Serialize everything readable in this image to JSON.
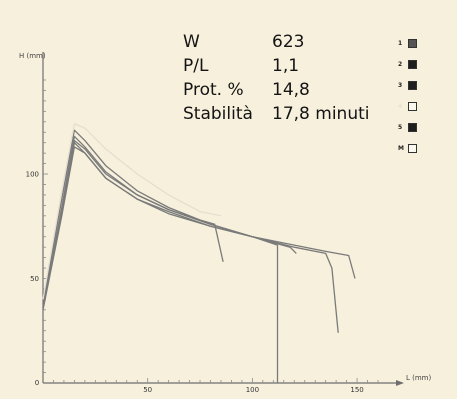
{
  "info": [
    {
      "label": "W",
      "value": "623"
    },
    {
      "label": "P/L",
      "value": "1,1"
    },
    {
      "label": "Prot. %",
      "value": "14,8"
    },
    {
      "label": "Stabilità",
      "value": "17,8 minuti"
    }
  ],
  "legend": [
    {
      "label": "1",
      "color": "#555555",
      "open": false
    },
    {
      "label": "2",
      "color": "#1e1e1e",
      "open": false
    },
    {
      "label": "3",
      "color": "#1e1e1e",
      "open": false
    },
    {
      "label": "4",
      "color": "#ffffff",
      "open": true
    },
    {
      "label": "5",
      "color": "#1e1e1e",
      "open": false
    },
    {
      "label": "M",
      "color": "#ffffff",
      "open": true
    }
  ],
  "chart_data": {
    "type": "line",
    "ylabel": "H (mm)",
    "xlabel": "L (mm)",
    "xlim": [
      0,
      160
    ],
    "ylim": [
      0,
      145
    ],
    "x_ticks": [
      0,
      50,
      100,
      150
    ],
    "y_ticks": [
      0,
      50,
      100
    ],
    "series": [
      {
        "color": "#7a7a7a",
        "points": [
          [
            0,
            38
          ],
          [
            9,
            88
          ],
          [
            15,
            121
          ],
          [
            20,
            116
          ],
          [
            30,
            104
          ],
          [
            45,
            92
          ],
          [
            60,
            84
          ],
          [
            75,
            78
          ],
          [
            82,
            76
          ],
          [
            86,
            58
          ]
        ]
      },
      {
        "color": "#7a7a7a",
        "points": [
          [
            0,
            36
          ],
          [
            9,
            84
          ],
          [
            15,
            118
          ],
          [
            20,
            113
          ],
          [
            30,
            101
          ],
          [
            45,
            90
          ],
          [
            60,
            83
          ],
          [
            80,
            76
          ],
          [
            100,
            70
          ],
          [
            112,
            66
          ],
          [
            112,
            0
          ]
        ]
      },
      {
        "color": "#7a7a7a",
        "points": [
          [
            0,
            36
          ],
          [
            9,
            82
          ],
          [
            15,
            116
          ],
          [
            20,
            112
          ],
          [
            30,
            100
          ],
          [
            45,
            90
          ],
          [
            60,
            83
          ],
          [
            80,
            76
          ],
          [
            100,
            70
          ],
          [
            118,
            65
          ],
          [
            121,
            62
          ]
        ]
      },
      {
        "color": "#7a7a7a",
        "points": [
          [
            0,
            35
          ],
          [
            9,
            80
          ],
          [
            15,
            113
          ],
          [
            20,
            110
          ],
          [
            30,
            98
          ],
          [
            45,
            88
          ],
          [
            60,
            82
          ],
          [
            80,
            75
          ],
          [
            100,
            70
          ],
          [
            120,
            65
          ],
          [
            135,
            62
          ],
          [
            138,
            55
          ],
          [
            141,
            24
          ]
        ]
      },
      {
        "color": "#7a7a7a",
        "points": [
          [
            0,
            36
          ],
          [
            9,
            82
          ],
          [
            15,
            115
          ],
          [
            20,
            110
          ],
          [
            30,
            98
          ],
          [
            45,
            88
          ],
          [
            60,
            81
          ],
          [
            80,
            75
          ],
          [
            100,
            70
          ],
          [
            120,
            66
          ],
          [
            135,
            63
          ],
          [
            146,
            61
          ],
          [
            149,
            50
          ]
        ]
      },
      {
        "color": "#e4dfd0",
        "points": [
          [
            0,
            40
          ],
          [
            9,
            92
          ],
          [
            15,
            124
          ],
          [
            20,
            122
          ],
          [
            30,
            112
          ],
          [
            45,
            100
          ],
          [
            60,
            90
          ],
          [
            75,
            82
          ],
          [
            85,
            80
          ]
        ]
      }
    ]
  }
}
